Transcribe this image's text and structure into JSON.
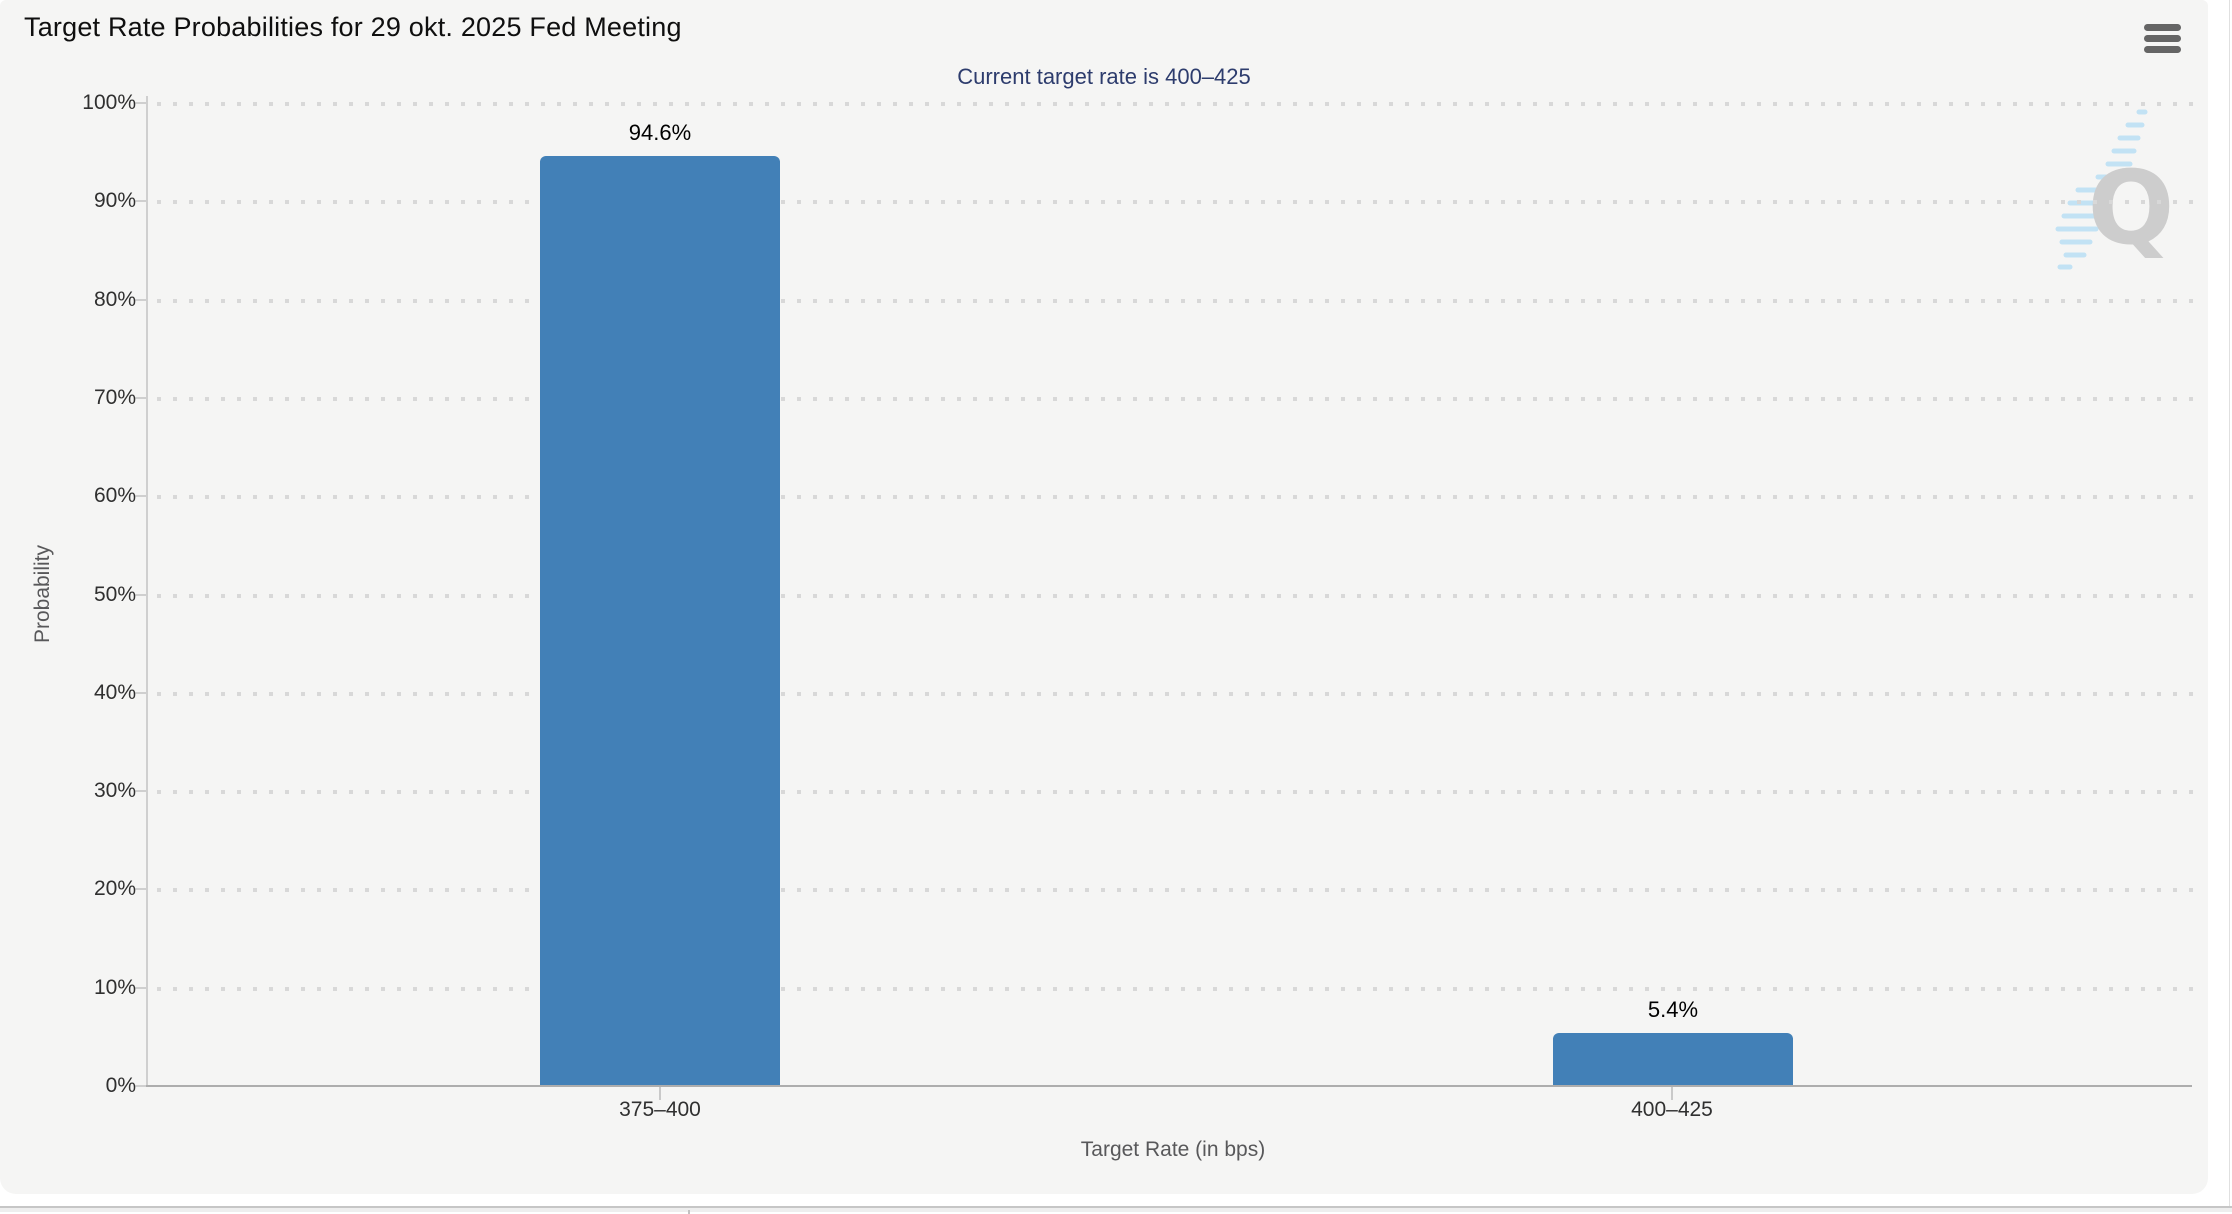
{
  "header": {
    "title": "Target Rate Probabilities for 29 okt. 2025 Fed Meeting",
    "menu_icon": "hamburger-icon"
  },
  "chart_data": {
    "type": "bar",
    "title": "Target Rate Probabilities for 29 okt. 2025 Fed Meeting",
    "subtitle": "Current target rate is 400–425",
    "categories": [
      "375–400",
      "400–425"
    ],
    "values": [
      94.6,
      5.4
    ],
    "value_labels": [
      "94.6%",
      "5.4%"
    ],
    "xlabel": "Target Rate (in bps)",
    "ylabel": "Probability",
    "ylim": [
      0,
      100
    ],
    "ytick_values": [
      0,
      10,
      20,
      30,
      40,
      50,
      60,
      70,
      80,
      90,
      100
    ],
    "ytick_labels": [
      "0%",
      "10%",
      "20%",
      "30%",
      "40%",
      "50%",
      "60%",
      "70%",
      "80%",
      "90%",
      "100%"
    ],
    "grid": "dotted horizontal gridlines, on",
    "legend": "none",
    "bar_color": "#4280b7",
    "subtitle_color": "#2d3c6d",
    "background_color": "#f5f5f4"
  },
  "watermark": {
    "letter": "Q"
  }
}
